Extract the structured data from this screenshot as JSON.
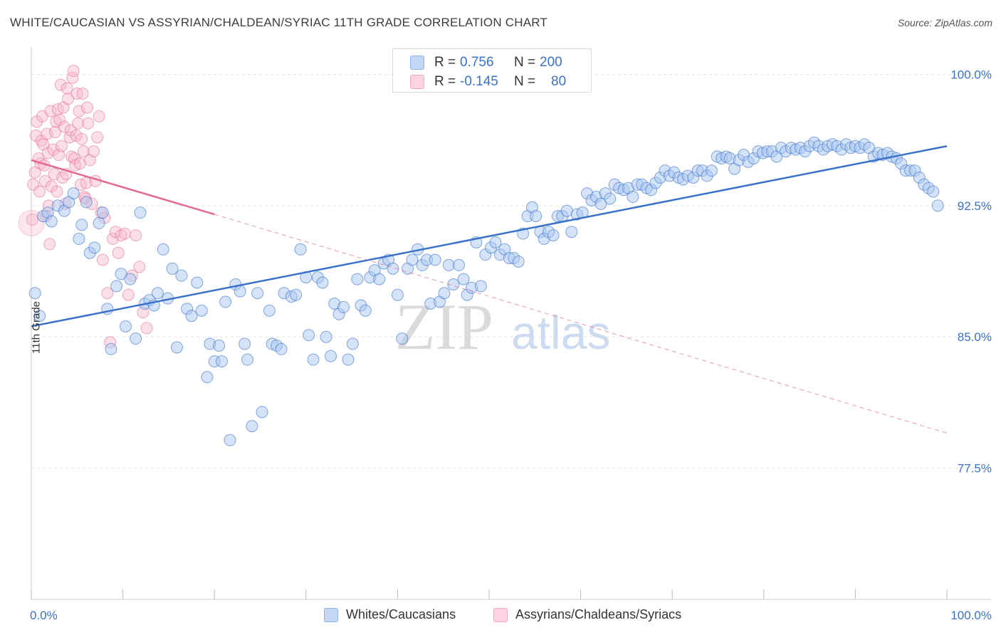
{
  "header": {
    "title": "WHITE/CAUCASIAN VS ASSYRIAN/CHALDEAN/SYRIAC 11TH GRADE CORRELATION CHART",
    "source": "Source: ZipAtlas.com"
  },
  "watermark": {
    "zip": "ZIP",
    "atlas": "atlas"
  },
  "legend_top": {
    "rows": [
      {
        "r_label": "R =",
        "r_value": "0.756",
        "n_label": "N =",
        "n_value": "200",
        "color": "#8fb4ea"
      },
      {
        "r_label": "R =",
        "r_value": "-0.145",
        "n_label": "N =",
        "n_value": "80",
        "color": "#f5a9c0"
      }
    ]
  },
  "legend_bottom": {
    "items": [
      {
        "label": "Whites/Caucasians",
        "color": "#8fb4ea"
      },
      {
        "label": "Assyrians/Chaldeans/Syriacs",
        "color": "#f5a9c0"
      }
    ]
  },
  "chart_data": {
    "type": "scatter",
    "title": "WHITE/CAUCASIAN VS ASSYRIAN/CHALDEAN/SYRIAC 11TH GRADE CORRELATION CHART",
    "xlabel": "",
    "ylabel": "11th Grade",
    "xlim": [
      0,
      100
    ],
    "ylim": [
      70.0,
      101.4
    ],
    "x_tick_labels": [
      {
        "value": 0,
        "label": "0.0%"
      },
      {
        "value": 100,
        "label": "100.0%"
      }
    ],
    "y_ticks": [
      {
        "value": 100.0,
        "label": "100.0%"
      },
      {
        "value": 92.5,
        "label": "92.5%"
      },
      {
        "value": 85.0,
        "label": "85.0%"
      },
      {
        "value": 77.5,
        "label": "77.5%"
      }
    ],
    "grid": true,
    "colors": {
      "blue": "#3a72c9",
      "blue_fill": "#aac8f0",
      "pink": "#e16a94",
      "pink_fill": "#f7b9cc",
      "tick_label": "#3a72c9"
    },
    "series": [
      {
        "name": "Whites/Caucasians",
        "color": "#3a72c9",
        "trend": {
          "x": [
            0,
            100
          ],
          "y": [
            85.6,
            95.9
          ],
          "style": "solid"
        },
        "points": [
          [
            0.4,
            87.5
          ],
          [
            0.9,
            86.2
          ],
          [
            1.3,
            91.9
          ],
          [
            1.8,
            92.1
          ],
          [
            2.2,
            91.6
          ],
          [
            2.9,
            92.5
          ],
          [
            3.6,
            92.2
          ],
          [
            4.1,
            92.7
          ],
          [
            4.6,
            93.2
          ],
          [
            5.2,
            90.6
          ],
          [
            5.5,
            91.4
          ],
          [
            6.0,
            92.7
          ],
          [
            6.4,
            89.8
          ],
          [
            6.9,
            90.1
          ],
          [
            7.4,
            91.5
          ],
          [
            7.8,
            92.1
          ],
          [
            8.3,
            86.6
          ],
          [
            8.7,
            84.3
          ],
          [
            9.3,
            87.9
          ],
          [
            9.8,
            88.6
          ],
          [
            10.3,
            85.6
          ],
          [
            10.8,
            88.3
          ],
          [
            11.4,
            84.9
          ],
          [
            11.9,
            92.1
          ],
          [
            12.4,
            86.9
          ],
          [
            12.9,
            87.1
          ],
          [
            13.4,
            86.8
          ],
          [
            13.8,
            87.5
          ],
          [
            14.4,
            90.0
          ],
          [
            14.9,
            87.2
          ],
          [
            15.4,
            88.9
          ],
          [
            15.9,
            84.4
          ],
          [
            16.4,
            88.5
          ],
          [
            17.0,
            86.6
          ],
          [
            17.5,
            86.2
          ],
          [
            18.1,
            88.1
          ],
          [
            18.6,
            86.5
          ],
          [
            19.2,
            82.7
          ],
          [
            19.5,
            84.6
          ],
          [
            20.0,
            83.6
          ],
          [
            20.5,
            84.5
          ],
          [
            20.8,
            83.6
          ],
          [
            21.2,
            87.0
          ],
          [
            21.7,
            79.1
          ],
          [
            22.3,
            88.0
          ],
          [
            22.8,
            87.6
          ],
          [
            23.3,
            84.6
          ],
          [
            23.6,
            83.7
          ],
          [
            24.1,
            79.9
          ],
          [
            24.7,
            87.5
          ],
          [
            25.2,
            80.7
          ],
          [
            26.0,
            86.5
          ],
          [
            26.3,
            84.6
          ],
          [
            26.8,
            84.5
          ],
          [
            27.3,
            84.3
          ],
          [
            27.6,
            87.5
          ],
          [
            28.4,
            87.3
          ],
          [
            28.9,
            87.4
          ],
          [
            29.4,
            90.0
          ],
          [
            30.0,
            88.4
          ],
          [
            30.3,
            85.1
          ],
          [
            30.8,
            83.7
          ],
          [
            31.3,
            88.4
          ],
          [
            31.8,
            88.1
          ],
          [
            32.2,
            85.0
          ],
          [
            32.7,
            83.9
          ],
          [
            33.1,
            86.9
          ],
          [
            33.6,
            86.3
          ],
          [
            34.1,
            86.7
          ],
          [
            34.6,
            83.7
          ],
          [
            35.1,
            84.6
          ],
          [
            35.6,
            88.3
          ],
          [
            36.0,
            86.8
          ],
          [
            36.5,
            86.5
          ],
          [
            37.0,
            88.4
          ],
          [
            37.5,
            88.8
          ],
          [
            38.0,
            88.3
          ],
          [
            38.5,
            89.2
          ],
          [
            39.0,
            89.4
          ],
          [
            39.5,
            88.9
          ],
          [
            40.0,
            87.4
          ],
          [
            40.5,
            84.9
          ],
          [
            41.1,
            88.9
          ],
          [
            41.6,
            89.4
          ],
          [
            42.2,
            90.0
          ],
          [
            42.7,
            89.1
          ],
          [
            43.2,
            89.4
          ],
          [
            43.6,
            86.9
          ],
          [
            44.1,
            89.4
          ],
          [
            44.6,
            87.0
          ],
          [
            45.1,
            87.5
          ],
          [
            45.6,
            89.1
          ],
          [
            46.1,
            88.0
          ],
          [
            46.7,
            89.1
          ],
          [
            47.2,
            88.3
          ],
          [
            47.6,
            87.4
          ],
          [
            48.1,
            87.8
          ],
          [
            48.6,
            90.4
          ],
          [
            49.1,
            87.9
          ],
          [
            49.6,
            89.7
          ],
          [
            50.2,
            90.1
          ],
          [
            50.7,
            90.4
          ],
          [
            51.2,
            89.7
          ],
          [
            51.7,
            90.0
          ],
          [
            52.2,
            89.5
          ],
          [
            52.7,
            89.5
          ],
          [
            53.2,
            89.3
          ],
          [
            53.7,
            90.9
          ],
          [
            54.2,
            91.9
          ],
          [
            54.7,
            92.4
          ],
          [
            55.1,
            91.9
          ],
          [
            55.6,
            91.0
          ],
          [
            56.0,
            90.6
          ],
          [
            56.5,
            91.0
          ],
          [
            57.0,
            90.8
          ],
          [
            57.5,
            91.9
          ],
          [
            58.0,
            91.9
          ],
          [
            58.5,
            92.2
          ],
          [
            59.0,
            91.0
          ],
          [
            59.6,
            92.0
          ],
          [
            60.2,
            92.1
          ],
          [
            60.7,
            93.2
          ],
          [
            61.2,
            92.8
          ],
          [
            61.7,
            93.0
          ],
          [
            62.2,
            92.6
          ],
          [
            62.7,
            93.2
          ],
          [
            63.2,
            92.9
          ],
          [
            63.7,
            93.7
          ],
          [
            64.2,
            93.5
          ],
          [
            64.7,
            93.4
          ],
          [
            65.2,
            93.5
          ],
          [
            65.7,
            93.0
          ],
          [
            66.2,
            93.7
          ],
          [
            66.7,
            93.7
          ],
          [
            67.2,
            93.5
          ],
          [
            67.7,
            93.4
          ],
          [
            68.2,
            93.8
          ],
          [
            68.7,
            94.1
          ],
          [
            69.2,
            94.5
          ],
          [
            69.7,
            94.2
          ],
          [
            70.2,
            94.4
          ],
          [
            70.7,
            94.1
          ],
          [
            71.2,
            94.0
          ],
          [
            71.7,
            94.2
          ],
          [
            72.3,
            94.1
          ],
          [
            72.8,
            94.5
          ],
          [
            73.3,
            94.5
          ],
          [
            73.8,
            94.2
          ],
          [
            74.3,
            94.5
          ],
          [
            74.9,
            95.3
          ],
          [
            75.4,
            95.2
          ],
          [
            75.9,
            95.3
          ],
          [
            76.3,
            95.2
          ],
          [
            76.8,
            94.6
          ],
          [
            77.3,
            95.1
          ],
          [
            77.8,
            95.4
          ],
          [
            78.3,
            95.0
          ],
          [
            78.9,
            95.2
          ],
          [
            79.4,
            95.6
          ],
          [
            79.9,
            95.5
          ],
          [
            80.4,
            95.6
          ],
          [
            80.9,
            95.6
          ],
          [
            81.4,
            95.3
          ],
          [
            81.9,
            95.8
          ],
          [
            82.4,
            95.6
          ],
          [
            83.0,
            95.8
          ],
          [
            83.5,
            95.7
          ],
          [
            84.0,
            95.8
          ],
          [
            84.5,
            95.6
          ],
          [
            85.0,
            95.9
          ],
          [
            85.5,
            96.1
          ],
          [
            86.0,
            95.9
          ],
          [
            86.5,
            95.7
          ],
          [
            87.0,
            95.9
          ],
          [
            87.5,
            96.0
          ],
          [
            88.0,
            95.9
          ],
          [
            88.5,
            95.7
          ],
          [
            89.0,
            96.0
          ],
          [
            89.5,
            95.8
          ],
          [
            90.0,
            95.9
          ],
          [
            90.5,
            95.8
          ],
          [
            91.0,
            96.0
          ],
          [
            91.5,
            95.8
          ],
          [
            92.0,
            95.3
          ],
          [
            92.5,
            95.5
          ],
          [
            93.0,
            95.4
          ],
          [
            93.5,
            95.5
          ],
          [
            94.0,
            95.3
          ],
          [
            94.5,
            95.2
          ],
          [
            95.0,
            94.9
          ],
          [
            95.5,
            94.5
          ],
          [
            96.0,
            94.5
          ],
          [
            96.5,
            94.5
          ],
          [
            97.0,
            94.1
          ],
          [
            97.5,
            93.7
          ],
          [
            98.0,
            93.5
          ],
          [
            98.5,
            93.3
          ],
          [
            99.0,
            92.5
          ]
        ]
      },
      {
        "name": "Assyrians/Chaldeans/Syriacs",
        "color": "#e16a94",
        "trend": {
          "x": [
            0,
            20
          ],
          "y": [
            95.1,
            92.0
          ],
          "style": "solid"
        },
        "trend_extended": {
          "x": [
            20,
            100
          ],
          "y": [
            92.0,
            79.5
          ],
          "style": "dashed"
        },
        "points": [
          [
            0.1,
            91.7
          ],
          [
            0.2,
            93.7
          ],
          [
            0.4,
            94.4
          ],
          [
            0.5,
            96.5
          ],
          [
            0.6,
            97.3
          ],
          [
            0.8,
            95.2
          ],
          [
            0.9,
            93.3
          ],
          [
            1.0,
            94.9
          ],
          [
            1.1,
            96.2
          ],
          [
            1.2,
            97.6
          ],
          [
            1.3,
            96.0
          ],
          [
            1.4,
            94.8
          ],
          [
            1.5,
            93.9
          ],
          [
            1.6,
            91.9
          ],
          [
            1.7,
            96.6
          ],
          [
            1.8,
            95.5
          ],
          [
            1.9,
            92.5
          ],
          [
            2.0,
            90.3
          ],
          [
            2.1,
            97.9
          ],
          [
            2.2,
            93.6
          ],
          [
            2.4,
            95.7
          ],
          [
            2.5,
            94.3
          ],
          [
            2.6,
            96.7
          ],
          [
            2.7,
            97.3
          ],
          [
            2.8,
            93.3
          ],
          [
            2.9,
            98.0
          ],
          [
            3.0,
            95.4
          ],
          [
            3.1,
            97.4
          ],
          [
            3.2,
            99.4
          ],
          [
            3.3,
            95.9
          ],
          [
            3.4,
            94.1
          ],
          [
            3.5,
            98.1
          ],
          [
            3.6,
            97.0
          ],
          [
            3.7,
            92.6
          ],
          [
            3.8,
            94.3
          ],
          [
            3.9,
            99.2
          ],
          [
            4.0,
            98.6
          ],
          [
            4.2,
            96.4
          ],
          [
            4.3,
            96.8
          ],
          [
            4.4,
            95.3
          ],
          [
            4.5,
            99.8
          ],
          [
            4.6,
            100.2
          ],
          [
            4.7,
            95.2
          ],
          [
            4.8,
            94.8
          ],
          [
            4.9,
            96.5
          ],
          [
            5.0,
            98.9
          ],
          [
            5.1,
            97.2
          ],
          [
            5.2,
            97.9
          ],
          [
            5.3,
            94.9
          ],
          [
            5.4,
            93.7
          ],
          [
            5.5,
            96.3
          ],
          [
            5.6,
            98.9
          ],
          [
            5.7,
            95.6
          ],
          [
            5.8,
            93.0
          ],
          [
            5.9,
            92.9
          ],
          [
            6.0,
            93.8
          ],
          [
            6.1,
            98.1
          ],
          [
            6.2,
            97.2
          ],
          [
            6.4,
            95.1
          ],
          [
            6.6,
            92.6
          ],
          [
            6.8,
            95.6
          ],
          [
            7.0,
            93.9
          ],
          [
            7.2,
            96.4
          ],
          [
            7.4,
            97.6
          ],
          [
            7.6,
            92.1
          ],
          [
            7.8,
            89.4
          ],
          [
            8.0,
            91.8
          ],
          [
            8.3,
            87.5
          ],
          [
            8.6,
            84.7
          ],
          [
            8.9,
            90.6
          ],
          [
            9.2,
            91.0
          ],
          [
            9.5,
            89.8
          ],
          [
            9.8,
            90.8
          ],
          [
            10.2,
            90.9
          ],
          [
            10.6,
            87.4
          ],
          [
            11.0,
            88.5
          ],
          [
            11.4,
            90.8
          ],
          [
            11.8,
            89.0
          ],
          [
            12.2,
            86.4
          ],
          [
            12.6,
            85.5
          ]
        ]
      }
    ]
  }
}
